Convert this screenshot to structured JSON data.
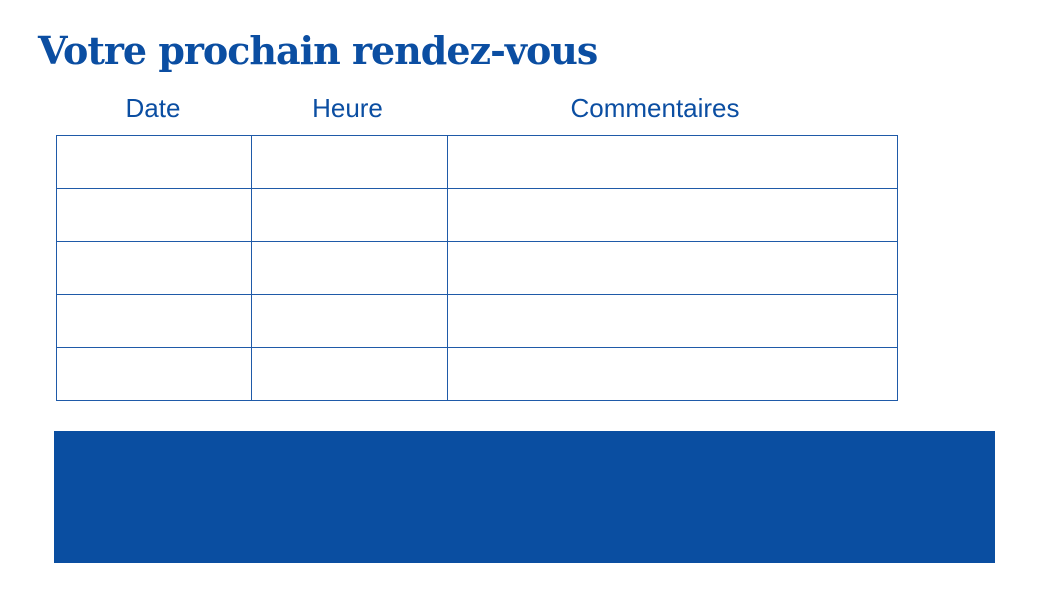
{
  "title": "Votre prochain rendez-vous",
  "table": {
    "headers": [
      "Date",
      "Heure",
      "Commentaires"
    ],
    "rows": [
      [
        "",
        "",
        ""
      ],
      [
        "",
        "",
        ""
      ],
      [
        "",
        "",
        ""
      ],
      [
        "",
        "",
        ""
      ],
      [
        "",
        "",
        ""
      ]
    ]
  },
  "colors": {
    "brand_blue": "#0b4ea2",
    "panel_blue": "#0a4ea1"
  }
}
